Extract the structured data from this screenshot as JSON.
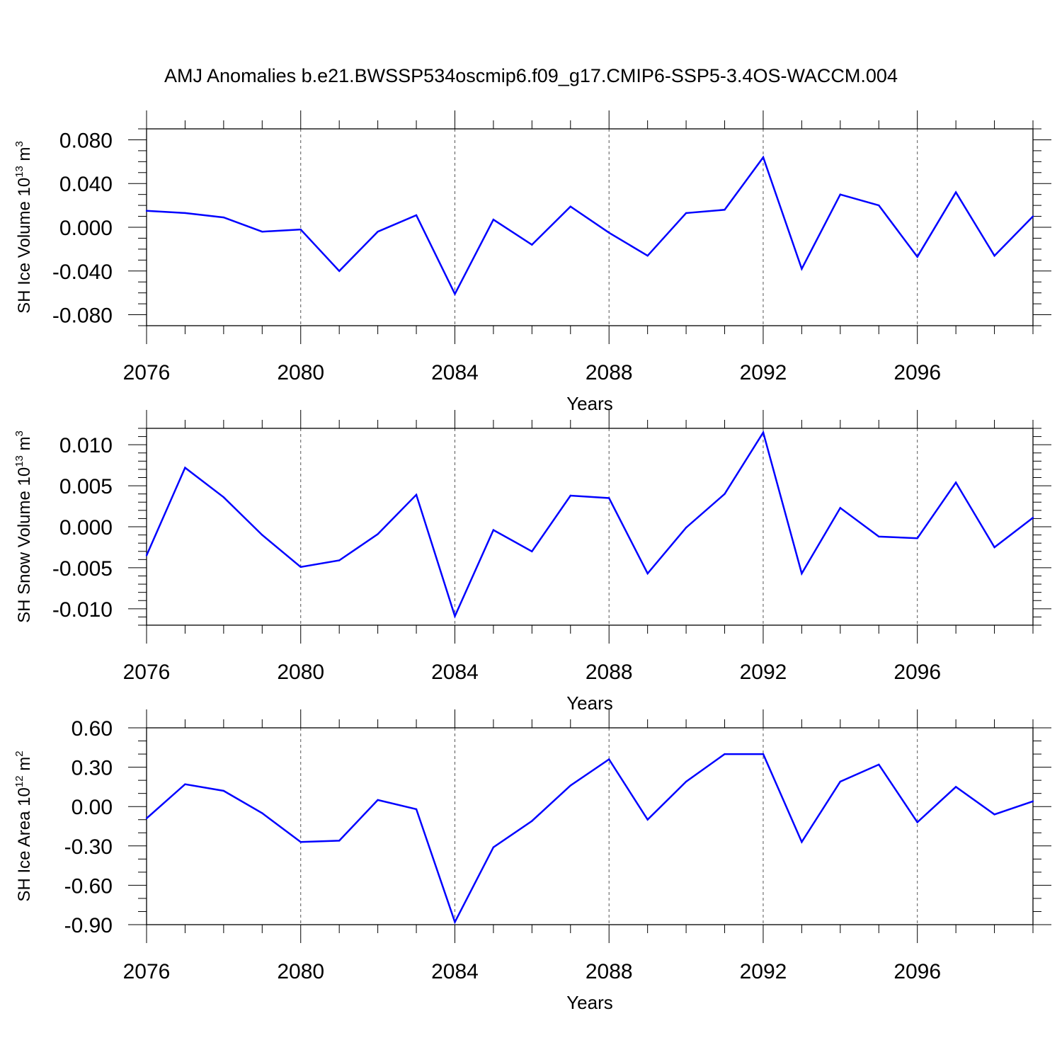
{
  "title": "AMJ Anomalies b.e21.BWSSP534oscmip6.f09_g17.CMIP6-SSP5-3.4OS-WACCM.004",
  "line_color": "#0000ff",
  "chart_data": [
    {
      "type": "line",
      "ylabel_main": "SH Ice Volume 10",
      "ylabel_exp": "13",
      "ylabel_unit": " m",
      "ylabel_unit_exp": "3",
      "xlabel": "Years",
      "xlim": [
        2076,
        2099
      ],
      "ylim": [
        -0.09,
        0.09
      ],
      "xticks": [
        2076,
        2080,
        2084,
        2088,
        2092,
        2096
      ],
      "xtick_labels": [
        "2076",
        "2080",
        "2084",
        "2088",
        "2092",
        "2096"
      ],
      "yticks": [
        -0.08,
        -0.04,
        0.0,
        0.04,
        0.08
      ],
      "ytick_labels": [
        "-0.080",
        "-0.040",
        "0.000",
        "0.040",
        "0.080"
      ],
      "y_minor_step": 0.01,
      "x": [
        2076,
        2077,
        2078,
        2079,
        2080,
        2081,
        2082,
        2083,
        2084,
        2085,
        2086,
        2087,
        2088,
        2089,
        2090,
        2091,
        2092,
        2093,
        2094,
        2095,
        2096,
        2097,
        2098,
        2099
      ],
      "values": [
        0.015,
        0.013,
        0.009,
        -0.004,
        -0.002,
        -0.04,
        -0.004,
        0.011,
        -0.061,
        0.007,
        -0.016,
        0.019,
        -0.005,
        -0.026,
        0.013,
        0.016,
        0.064,
        -0.038,
        0.03,
        0.02,
        -0.027,
        0.032,
        -0.026,
        0.01
      ]
    },
    {
      "type": "line",
      "ylabel_main": "SH Snow Volume 10",
      "ylabel_exp": "13",
      "ylabel_unit": " m",
      "ylabel_unit_exp": "3",
      "xlabel": "Years",
      "xlim": [
        2076,
        2099
      ],
      "ylim": [
        -0.012,
        0.012
      ],
      "xticks": [
        2076,
        2080,
        2084,
        2088,
        2092,
        2096
      ],
      "xtick_labels": [
        "2076",
        "2080",
        "2084",
        "2088",
        "2092",
        "2096"
      ],
      "yticks": [
        -0.01,
        -0.005,
        0.0,
        0.005,
        0.01
      ],
      "ytick_labels": [
        "-0.010",
        "-0.005",
        "0.000",
        "0.005",
        "0.010"
      ],
      "y_minor_step": 0.001,
      "x": [
        2076,
        2077,
        2078,
        2079,
        2080,
        2081,
        2082,
        2083,
        2084,
        2085,
        2086,
        2087,
        2088,
        2089,
        2090,
        2091,
        2092,
        2093,
        2094,
        2095,
        2096,
        2097,
        2098,
        2099
      ],
      "values": [
        -0.0035,
        0.0072,
        0.0036,
        -0.001,
        -0.0049,
        -0.0041,
        -0.0009,
        0.0039,
        -0.0109,
        -0.0004,
        -0.003,
        0.0038,
        0.0035,
        -0.0057,
        -0.0001,
        0.004,
        0.0115,
        -0.0057,
        0.0023,
        -0.0012,
        -0.0014,
        0.0054,
        -0.0025,
        0.0011
      ]
    },
    {
      "type": "line",
      "ylabel_main": "SH Ice Area 10",
      "ylabel_exp": "12",
      "ylabel_unit": " m",
      "ylabel_unit_exp": "2",
      "xlabel": "Years",
      "xlim": [
        2076,
        2099
      ],
      "ylim": [
        -0.9,
        0.6
      ],
      "xticks": [
        2076,
        2080,
        2084,
        2088,
        2092,
        2096
      ],
      "xtick_labels": [
        "2076",
        "2080",
        "2084",
        "2088",
        "2092",
        "2096"
      ],
      "yticks": [
        -0.9,
        -0.6,
        -0.3,
        0.0,
        0.3,
        0.6
      ],
      "ytick_labels": [
        "-0.90",
        "-0.60",
        "-0.30",
        "0.00",
        "0.30",
        "0.60"
      ],
      "y_minor_step": 0.1,
      "x": [
        2076,
        2077,
        2078,
        2079,
        2080,
        2081,
        2082,
        2083,
        2084,
        2085,
        2086,
        2087,
        2088,
        2089,
        2090,
        2091,
        2092,
        2093,
        2094,
        2095,
        2096,
        2097,
        2098,
        2099
      ],
      "values": [
        -0.09,
        0.17,
        0.12,
        -0.05,
        -0.27,
        -0.26,
        0.05,
        -0.02,
        -0.88,
        -0.31,
        -0.11,
        0.16,
        0.36,
        -0.1,
        0.19,
        0.4,
        0.4,
        -0.27,
        0.19,
        0.32,
        -0.12,
        0.15,
        -0.06,
        0.04
      ]
    }
  ]
}
